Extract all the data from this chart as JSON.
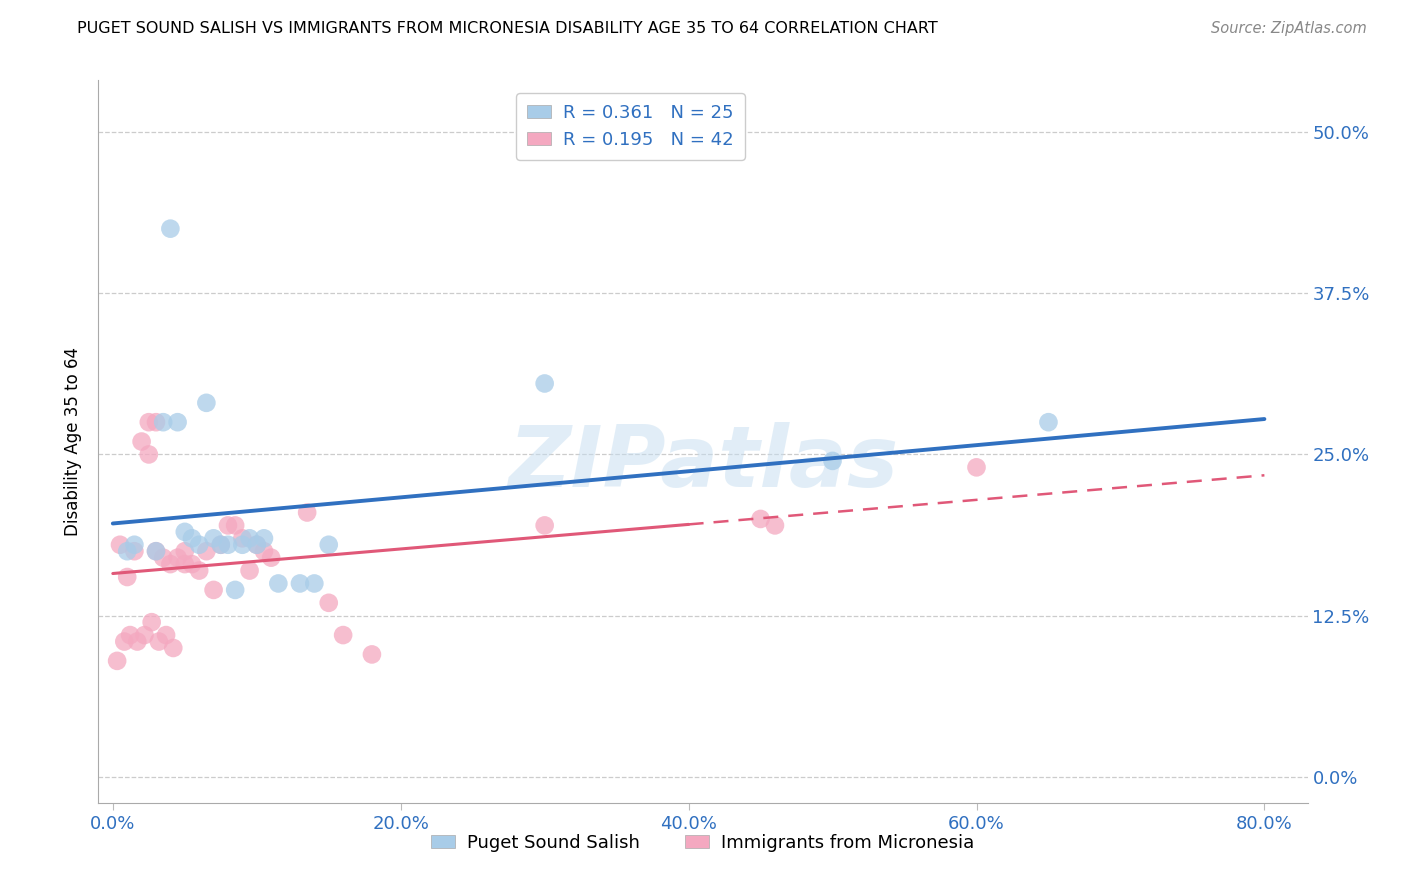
{
  "title": "PUGET SOUND SALISH VS IMMIGRANTS FROM MICRONESIA DISABILITY AGE 35 TO 64 CORRELATION CHART",
  "source": "Source: ZipAtlas.com",
  "xlabel_ticks": [
    0.0,
    20.0,
    40.0,
    60.0,
    80.0
  ],
  "ylabel_ticks": [
    0.0,
    12.5,
    25.0,
    37.5,
    50.0
  ],
  "xlim": [
    -1.0,
    83
  ],
  "ylim": [
    -2,
    54
  ],
  "ylabel": "Disability Age 35 to 64",
  "blue_label": "Puget Sound Salish",
  "pink_label": "Immigrants from Micronesia",
  "blue_R": "0.361",
  "blue_N": "25",
  "pink_R": "0.195",
  "pink_N": "42",
  "blue_color": "#a8cce8",
  "pink_color": "#f4a8c0",
  "blue_line_color": "#3070c0",
  "pink_line_color": "#e05878",
  "blue_x": [
    1.5,
    3.0,
    3.5,
    4.5,
    5.0,
    5.5,
    6.0,
    7.0,
    7.5,
    8.0,
    9.0,
    9.5,
    10.0,
    10.5,
    11.5,
    13.0,
    14.0,
    15.0,
    4.0,
    6.5,
    8.5,
    30.0,
    50.0,
    65.0,
    1.0
  ],
  "blue_y": [
    18.0,
    17.5,
    27.5,
    27.5,
    19.0,
    18.5,
    18.0,
    18.5,
    18.0,
    18.0,
    18.0,
    18.5,
    18.0,
    18.5,
    15.0,
    15.0,
    15.0,
    18.0,
    42.5,
    29.0,
    14.5,
    30.5,
    24.5,
    27.5,
    17.5
  ],
  "pink_x": [
    0.5,
    1.0,
    1.5,
    2.0,
    2.5,
    2.5,
    3.0,
    3.0,
    3.5,
    4.0,
    4.5,
    5.0,
    5.0,
    5.5,
    6.0,
    6.5,
    7.0,
    7.5,
    8.0,
    8.5,
    9.0,
    9.5,
    10.0,
    10.5,
    11.0,
    13.5,
    15.0,
    16.0,
    18.0,
    30.0,
    45.0,
    46.0,
    0.3,
    0.8,
    1.2,
    1.7,
    2.2,
    2.7,
    3.2,
    3.7,
    4.2,
    60.0
  ],
  "pink_y": [
    18.0,
    15.5,
    17.5,
    26.0,
    25.0,
    27.5,
    27.5,
    17.5,
    17.0,
    16.5,
    17.0,
    17.5,
    16.5,
    16.5,
    16.0,
    17.5,
    14.5,
    18.0,
    19.5,
    19.5,
    18.5,
    16.0,
    18.0,
    17.5,
    17.0,
    20.5,
    13.5,
    11.0,
    9.5,
    19.5,
    20.0,
    19.5,
    9.0,
    10.5,
    11.0,
    10.5,
    11.0,
    12.0,
    10.5,
    11.0,
    10.0,
    24.0
  ],
  "watermark": "ZIPatlas",
  "background_color": "#ffffff",
  "grid_color": "#cccccc",
  "blue_line_x_start": 0,
  "blue_line_x_end": 80,
  "pink_line_solid_end": 40,
  "pink_line_x_end": 80
}
